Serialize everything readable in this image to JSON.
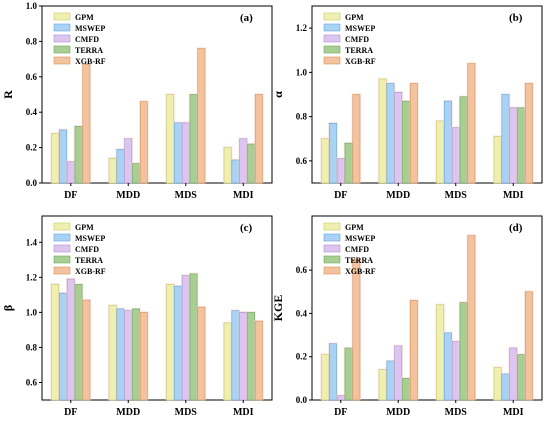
{
  "series_names": [
    "GPM",
    "MSWEP",
    "CMFD",
    "TERRA",
    "XGB-RF"
  ],
  "colors": {
    "GPM": "#efefb0",
    "MSWEP": "#a9d3f5",
    "CMFD": "#dcc6ef",
    "TERRA": "#a7ce93",
    "XGB-RF": "#f2c39e",
    "GPM_edge": "#c9c96a",
    "MSWEP_edge": "#6aa4d8",
    "CMFD_edge": "#b08fd2",
    "TERRA_edge": "#76a85e",
    "XGB-RF_edge": "#d9925c",
    "glow": "#f7d6d0"
  },
  "chart_data": [
    {
      "type": "bar",
      "panel": "(a)",
      "ylabel": "R",
      "categories": [
        "DF",
        "MDD",
        "MDS",
        "MDI"
      ],
      "ylim": [
        0,
        1.0
      ],
      "yticks": [
        "0.0",
        "0.2",
        "0.4",
        "0.6",
        "0.8",
        "1.0"
      ],
      "ytick_values": [
        0,
        0.2,
        0.4,
        0.6,
        0.8,
        1.0
      ],
      "series": [
        {
          "name": "GPM",
          "values": [
            0.28,
            0.14,
            0.5,
            0.2
          ]
        },
        {
          "name": "MSWEP",
          "values": [
            0.3,
            0.19,
            0.34,
            0.13
          ]
        },
        {
          "name": "CMFD",
          "values": [
            0.12,
            0.25,
            0.34,
            0.25
          ]
        },
        {
          "name": "TERRA",
          "values": [
            0.32,
            0.11,
            0.5,
            0.22
          ]
        },
        {
          "name": "XGB-RF",
          "values": [
            0.67,
            0.46,
            0.76,
            0.5
          ]
        }
      ]
    },
    {
      "type": "bar",
      "panel": "(b)",
      "ylabel": "α",
      "categories": [
        "DF",
        "MDD",
        "MDS",
        "MDI"
      ],
      "ylim": [
        0.5,
        1.3
      ],
      "yticks": [
        "0.6",
        "0.8",
        "1.0",
        "1.2"
      ],
      "ytick_values": [
        0.6,
        0.8,
        1.0,
        1.2
      ],
      "series": [
        {
          "name": "GPM",
          "values": [
            0.7,
            0.97,
            0.78,
            0.71
          ]
        },
        {
          "name": "MSWEP",
          "values": [
            0.77,
            0.95,
            0.87,
            0.9
          ]
        },
        {
          "name": "CMFD",
          "values": [
            0.61,
            0.91,
            0.75,
            0.84
          ]
        },
        {
          "name": "TERRA",
          "values": [
            0.68,
            0.87,
            0.89,
            0.84
          ]
        },
        {
          "name": "XGB-RF",
          "values": [
            0.9,
            0.95,
            1.04,
            0.95
          ]
        }
      ]
    },
    {
      "type": "bar",
      "panel": "(c)",
      "ylabel": "β",
      "categories": [
        "DF",
        "MDD",
        "MDS",
        "MDI"
      ],
      "ylim": [
        0.5,
        1.55
      ],
      "yticks": [
        "0.6",
        "0.8",
        "1.0",
        "1.2",
        "1.4"
      ],
      "ytick_values": [
        0.6,
        0.8,
        1.0,
        1.2,
        1.4
      ],
      "series": [
        {
          "name": "GPM",
          "values": [
            1.16,
            1.04,
            1.16,
            0.94
          ]
        },
        {
          "name": "MSWEP",
          "values": [
            1.11,
            1.02,
            1.15,
            1.01
          ]
        },
        {
          "name": "CMFD",
          "values": [
            1.19,
            1.01,
            1.21,
            1.0
          ]
        },
        {
          "name": "TERRA",
          "values": [
            1.16,
            1.02,
            1.22,
            1.0
          ]
        },
        {
          "name": "XGB-RF",
          "values": [
            1.07,
            1.0,
            1.03,
            0.95
          ]
        }
      ]
    },
    {
      "type": "bar",
      "panel": "(d)",
      "ylabel": "KGE",
      "categories": [
        "DF",
        "MDD",
        "MDS",
        "MDI"
      ],
      "ylim": [
        0,
        0.85
      ],
      "yticks": [
        "0.0",
        "0.2",
        "0.4",
        "0.6"
      ],
      "ytick_values": [
        0,
        0.2,
        0.4,
        0.6
      ],
      "series": [
        {
          "name": "GPM",
          "values": [
            0.21,
            0.14,
            0.44,
            0.15
          ]
        },
        {
          "name": "MSWEP",
          "values": [
            0.26,
            0.18,
            0.31,
            0.12
          ]
        },
        {
          "name": "CMFD",
          "values": [
            0.02,
            0.25,
            0.27,
            0.24
          ]
        },
        {
          "name": "TERRA",
          "values": [
            0.24,
            0.1,
            0.45,
            0.21
          ]
        },
        {
          "name": "XGB-RF",
          "values": [
            0.65,
            0.46,
            0.76,
            0.5
          ]
        }
      ]
    }
  ]
}
